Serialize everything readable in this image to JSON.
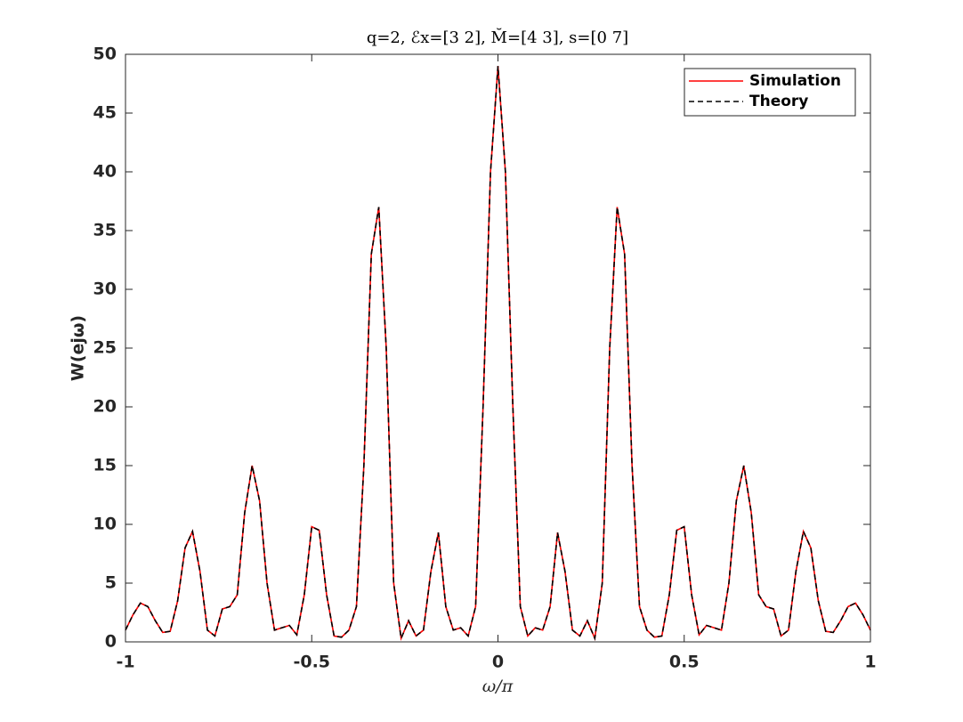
{
  "chart_data": {
    "type": "line",
    "title": "q=2, ℰx=[3 2], M̆=[4 3], s=[0 7]",
    "xlabel": "ω/π",
    "ylabel": "W(ejω)",
    "x": [
      -1,
      -0.98,
      -0.96,
      -0.94,
      -0.92,
      -0.9,
      -0.88,
      -0.86,
      -0.84,
      -0.82,
      -0.8,
      -0.78,
      -0.76,
      -0.74,
      -0.72,
      -0.7,
      -0.68,
      -0.66,
      -0.64,
      -0.62,
      -0.6,
      -0.58,
      -0.56,
      -0.54,
      -0.52,
      -0.5,
      -0.48,
      -0.46,
      -0.44,
      -0.42,
      -0.4,
      -0.38,
      -0.36,
      -0.34,
      -0.32,
      -0.3,
      -0.28,
      -0.26,
      -0.24,
      -0.22,
      -0.2,
      -0.18,
      -0.16,
      -0.14,
      -0.12,
      -0.1,
      -0.08,
      -0.06,
      -0.04,
      -0.02,
      0,
      0.02,
      0.04,
      0.06,
      0.08,
      0.1,
      0.12,
      0.14,
      0.16,
      0.18,
      0.2,
      0.22,
      0.24,
      0.26,
      0.28,
      0.3,
      0.32,
      0.34,
      0.36,
      0.38,
      0.4,
      0.42,
      0.44,
      0.46,
      0.48,
      0.5,
      0.52,
      0.54,
      0.56,
      0.58,
      0.6,
      0.62,
      0.64,
      0.66,
      0.68,
      0.7,
      0.72,
      0.74,
      0.76,
      0.78,
      0.8,
      0.82,
      0.84,
      0.86,
      0.88,
      0.9,
      0.92,
      0.94,
      0.96,
      0.98,
      1
    ],
    "series": [
      {
        "name": "Simulation",
        "color": "#ff0000",
        "linestyle": "solid",
        "values": [
          1,
          2.3,
          3.3,
          3,
          1.8,
          0.8,
          0.9,
          3.5,
          8,
          9.4,
          6,
          1,
          0.5,
          2.8,
          3,
          4,
          11,
          15,
          12,
          5,
          1,
          1.2,
          1.4,
          0.6,
          4,
          9.8,
          9.5,
          4,
          0.5,
          0.4,
          1,
          3,
          15,
          33,
          37,
          25,
          5,
          0.3,
          1.8,
          0.5,
          1,
          6,
          9.3,
          3,
          1,
          1.2,
          0.5,
          3,
          20,
          40,
          49,
          40,
          20,
          3,
          0.5,
          1.2,
          1,
          3,
          9.3,
          6,
          1,
          0.5,
          1.8,
          0.3,
          5,
          25,
          37,
          33,
          15,
          3,
          1,
          0.4,
          0.5,
          4,
          9.5,
          9.8,
          4,
          0.6,
          1.4,
          1.2,
          1,
          5,
          12,
          15,
          11,
          4,
          3,
          2.8,
          0.5,
          1,
          6,
          9.4,
          8,
          3.5,
          0.9,
          0.8,
          1.8,
          3,
          3.3,
          2.3,
          1
        ]
      },
      {
        "name": "Theory",
        "color": "#000000",
        "linestyle": "dashed",
        "values": [
          1,
          2.3,
          3.3,
          3,
          1.8,
          0.8,
          0.9,
          3.5,
          8,
          9.4,
          6,
          1,
          0.5,
          2.8,
          3,
          4,
          11,
          15,
          12,
          5,
          1,
          1.2,
          1.4,
          0.6,
          4,
          9.8,
          9.5,
          4,
          0.5,
          0.4,
          1,
          3,
          15,
          33,
          37,
          25,
          5,
          0.3,
          1.8,
          0.5,
          1,
          6,
          9.3,
          3,
          1,
          1.2,
          0.5,
          3,
          20,
          40,
          49,
          40,
          20,
          3,
          0.5,
          1.2,
          1,
          3,
          9.3,
          6,
          1,
          0.5,
          1.8,
          0.3,
          5,
          25,
          37,
          33,
          15,
          3,
          1,
          0.4,
          0.5,
          4,
          9.5,
          9.8,
          4,
          0.6,
          1.4,
          1.2,
          1,
          5,
          12,
          15,
          11,
          4,
          3,
          2.8,
          0.5,
          1,
          6,
          9.4,
          8,
          3.5,
          0.9,
          0.8,
          1.8,
          3,
          3.3,
          2.3,
          1
        ]
      }
    ],
    "xlim": [
      -1,
      1
    ],
    "xticks": [
      -1,
      -0.5,
      0,
      0.5,
      1
    ],
    "ylim": [
      0,
      50
    ],
    "yticks": [
      0,
      5,
      10,
      15,
      20,
      25,
      30,
      35,
      40,
      45,
      50
    ],
    "grid": false,
    "legend": "northeast"
  }
}
